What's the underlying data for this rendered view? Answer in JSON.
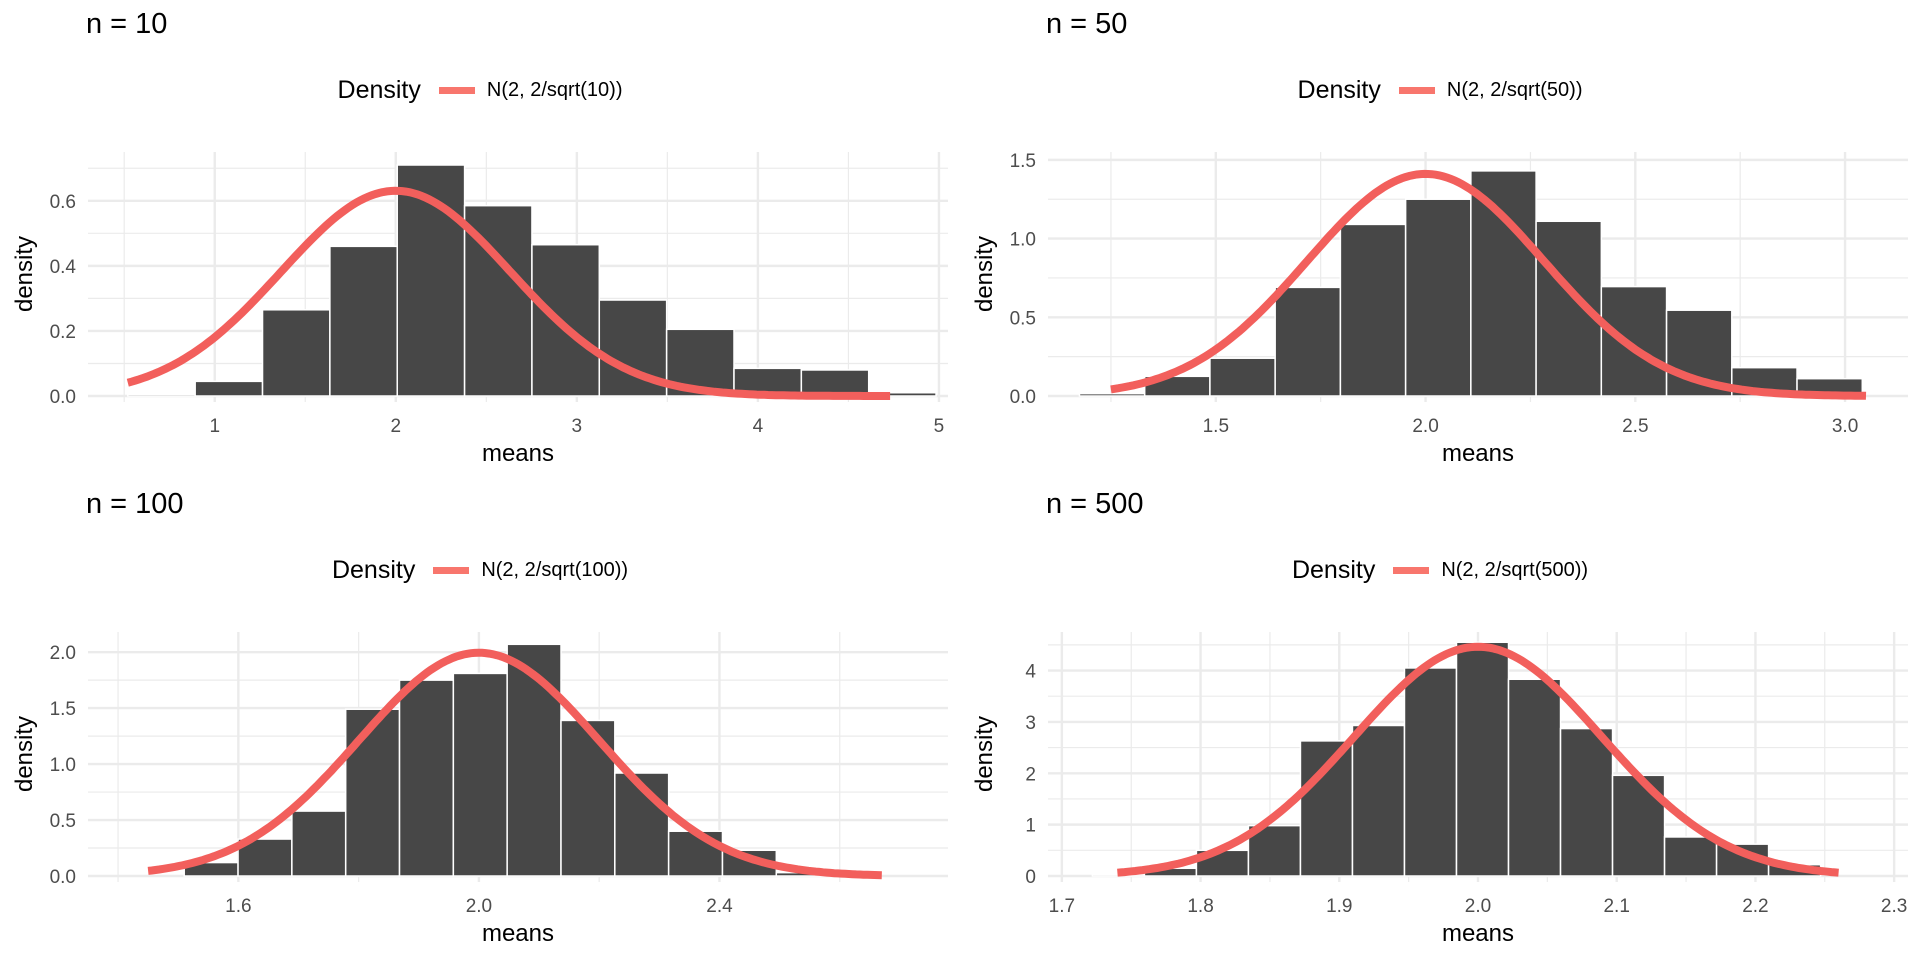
{
  "colors": {
    "bar": "#474747",
    "bar_border": "#ffffff",
    "curve": "#F25F5C",
    "grid": "#EBEBEB"
  },
  "chart_data": [
    {
      "type": "bar",
      "title": "n = 10",
      "legend": {
        "title": "Density",
        "label": "N(2, 2/sqrt(10))",
        "position": "top"
      },
      "xlabel": "means",
      "ylabel": "density",
      "xlim": [
        0.3,
        5.05
      ],
      "ylim": [
        0,
        0.75
      ],
      "xticks": [
        1,
        2,
        3,
        4,
        5
      ],
      "xtick_labels": [
        "1",
        "2",
        "3",
        "4",
        "5"
      ],
      "yticks": [
        0,
        0.2,
        0.4,
        0.6
      ],
      "ytick_labels": [
        "0.0",
        "0.2",
        "0.4",
        "0.6"
      ],
      "bin_start": 0.52,
      "bin_width": 0.372,
      "values": [
        0.005,
        0.045,
        0.265,
        0.46,
        0.71,
        0.585,
        0.465,
        0.295,
        0.205,
        0.085,
        0.08,
        0.01
      ],
      "curve": {
        "mean": 2,
        "sd": 0.6325,
        "from": 0.52,
        "to": 4.73
      }
    },
    {
      "type": "bar",
      "title": "n = 50",
      "legend": {
        "title": "Density",
        "label": "N(2, 2/sqrt(50))",
        "position": "top"
      },
      "xlabel": "means",
      "ylabel": "density",
      "xlim": [
        1.1,
        3.15
      ],
      "ylim": [
        0,
        1.55
      ],
      "xticks": [
        1.5,
        2.0,
        2.5,
        3.0
      ],
      "xtick_labels": [
        "1.5",
        "2.0",
        "2.5",
        "3.0"
      ],
      "yticks": [
        0,
        0.5,
        1.0,
        1.5
      ],
      "ytick_labels": [
        "0.0",
        "0.5",
        "1.0",
        "1.5"
      ],
      "bin_start": 1.175,
      "bin_width": 0.1555,
      "values": [
        0.015,
        0.125,
        0.24,
        0.69,
        1.09,
        1.25,
        1.43,
        1.11,
        0.695,
        0.545,
        0.18,
        0.11
      ],
      "curve": {
        "mean": 2,
        "sd": 0.2828,
        "from": 1.25,
        "to": 3.05
      }
    },
    {
      "type": "bar",
      "title": "n = 100",
      "legend": {
        "title": "Density",
        "label": "N(2, 2/sqrt(100))",
        "position": "top"
      },
      "xlabel": "means",
      "ylabel": "density",
      "xlim": [
        1.35,
        2.78
      ],
      "ylim": [
        0,
        2.18
      ],
      "xticks": [
        1.6,
        2.0,
        2.4
      ],
      "xtick_labels": [
        "1.6",
        "2.0",
        "2.4"
      ],
      "yticks": [
        0,
        0.5,
        1.0,
        1.5,
        2.0
      ],
      "ytick_labels": [
        "0.0",
        "0.5",
        "1.0",
        "1.5",
        "2.0"
      ],
      "bin_start": 1.51,
      "bin_width": 0.0895,
      "values": [
        0.12,
        0.33,
        0.58,
        1.49,
        1.75,
        1.81,
        2.07,
        1.39,
        0.92,
        0.4,
        0.23,
        0.03
      ],
      "curve": {
        "mean": 2,
        "sd": 0.2,
        "from": 1.45,
        "to": 2.67
      }
    },
    {
      "type": "bar",
      "title": "n = 500",
      "legend": {
        "title": "Density",
        "label": "N(2, 2/sqrt(500))",
        "position": "top"
      },
      "xlabel": "means",
      "ylabel": "density",
      "xlim": [
        1.69,
        2.31
      ],
      "ylim": [
        0,
        4.75
      ],
      "xticks": [
        1.7,
        1.8,
        1.9,
        2.0,
        2.1,
        2.2,
        2.3
      ],
      "xtick_labels": [
        "1.7",
        "1.8",
        "1.9",
        "2.0",
        "2.1",
        "2.2",
        "2.3"
      ],
      "yticks": [
        0,
        1,
        2,
        3,
        4
      ],
      "ytick_labels": [
        "0",
        "1",
        "2",
        "3",
        "4"
      ],
      "bin_start": 1.722,
      "bin_width": 0.0375,
      "values": [
        0.03,
        0.15,
        0.5,
        0.98,
        2.63,
        2.93,
        4.05,
        4.55,
        3.83,
        2.87,
        1.96,
        0.76,
        0.62,
        0.22
      ],
      "curve": {
        "mean": 2,
        "sd": 0.0894,
        "from": 1.74,
        "to": 2.26
      }
    }
  ]
}
